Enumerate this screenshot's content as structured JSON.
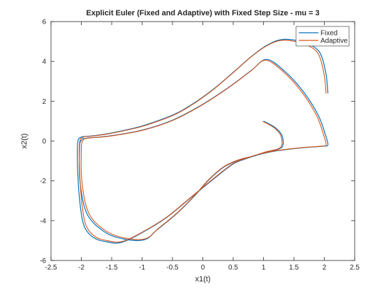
{
  "chart_data": {
    "type": "line",
    "title": "Explicit Euler (Fixed and Adaptive) with Fixed Step Size - mu = 3",
    "xlabel": "x1(t)",
    "ylabel": "x2(t)",
    "xlim": [
      -2.5,
      2.5
    ],
    "ylim": [
      -6,
      6
    ],
    "xticks": [
      -2.5,
      -2,
      -1.5,
      -1,
      -0.5,
      0,
      0.5,
      1,
      1.5,
      2,
      2.5
    ],
    "yticks": [
      -6,
      -4,
      -2,
      0,
      2,
      4,
      6
    ],
    "xtick_labels": [
      "-2.5",
      "-2",
      "-1.5",
      "-1",
      "-0.5",
      "0",
      "0.5",
      "1",
      "1.5",
      "2",
      "2.5"
    ],
    "ytick_labels": [
      "-6",
      "-4",
      "-2",
      "0",
      "2",
      "4",
      "6"
    ],
    "grid": false,
    "legend_position": "top-right",
    "series": [
      {
        "name": "Fixed",
        "color": "#0072BD",
        "x": [
          1.0,
          1.18,
          1.3,
          1.32,
          1.25,
          1.05,
          0.85,
          0.6,
          0.35,
          0.1,
          -0.15,
          -0.45,
          -0.75,
          -0.95,
          -1.25,
          -1.6,
          -1.9,
          -2.02,
          -2.03,
          -2.0,
          -1.9,
          -1.55,
          -1.0,
          -0.5,
          0.0,
          0.45,
          0.8,
          1.05,
          1.35,
          1.65,
          1.9,
          2.02,
          2.06,
          2.04,
          2.0,
          1.9,
          1.6,
          1.2,
          0.9,
          0.7,
          0.5,
          0.2,
          -0.2,
          -0.6,
          -1.0,
          -1.35,
          -1.6,
          -1.8,
          -1.95,
          -2.02,
          -2.06,
          -2.06,
          -2.0,
          -1.85,
          -1.6,
          -1.2,
          -0.95,
          -0.5,
          -0.2,
          0.15,
          0.5,
          0.8,
          1.05,
          1.3,
          1.6,
          1.9,
          2.02,
          2.06
        ],
        "y": [
          1.0,
          0.7,
          0.3,
          -0.2,
          -0.4,
          -0.55,
          -0.75,
          -0.95,
          -1.3,
          -1.95,
          -2.8,
          -3.7,
          -4.45,
          -4.95,
          -4.95,
          -4.6,
          -3.7,
          -2.1,
          -0.4,
          0.05,
          0.15,
          0.25,
          0.55,
          1.05,
          1.85,
          2.75,
          3.55,
          4.1,
          3.5,
          2.5,
          1.3,
          0.3,
          -0.15,
          -0.25,
          -0.25,
          -0.28,
          -0.35,
          -0.5,
          -0.7,
          -0.9,
          -1.15,
          -1.85,
          -2.85,
          -3.85,
          -4.6,
          -5.1,
          -5.05,
          -4.85,
          -4.3,
          -3.2,
          -1.5,
          -0.1,
          0.2,
          0.25,
          0.35,
          0.6,
          0.8,
          1.3,
          1.8,
          2.55,
          3.45,
          4.25,
          4.8,
          5.1,
          5.0,
          4.55,
          3.5,
          2.4
        ],
        "x2": [],
        "y2": []
      },
      {
        "name": "Adaptive",
        "color": "#D95319",
        "x": [],
        "y": []
      }
    ],
    "legend": [
      "Fixed",
      "Adaptive"
    ]
  }
}
